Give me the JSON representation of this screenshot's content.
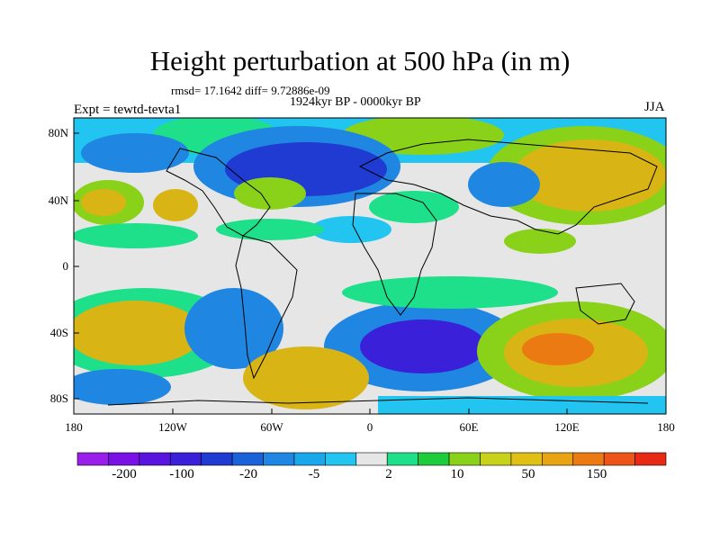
{
  "title": "Height perturbation at 500 hPa (in m)",
  "stats_line": "rmsd= 17.1642  diff= 9.72886e-09",
  "period_line": "1924kyr BP - 0000kyr BP",
  "experiment_label": "Expt = tewtd-tevta1",
  "season_label": "JJA",
  "lat_ticks": [
    "80N",
    "40N",
    "0",
    "40S",
    "80S"
  ],
  "lon_ticks": [
    "180",
    "120W",
    "60W",
    "0",
    "60E",
    "120E",
    "180"
  ],
  "colorbar": {
    "colors": [
      "#9a1eea",
      "#7a10e6",
      "#5a14e0",
      "#3a20d8",
      "#1f3bd2",
      "#1a62da",
      "#1f86e2",
      "#19a8ec",
      "#22c4f0",
      "#e6e6e6",
      "#1ee08a",
      "#1ccc3a",
      "#8ad21a",
      "#c8d21a",
      "#e0c014",
      "#e8a412",
      "#ec7a12",
      "#ee5418",
      "#e82a14"
    ],
    "labels": [
      "-200",
      "-100",
      "-20",
      "-5",
      "2",
      "10",
      "50",
      "150"
    ]
  },
  "map_colors": {
    "neutral": "#e6e6e6",
    "neg_weak": "#22c4f0",
    "neg_mid": "#1f86e2",
    "neg_strong": "#1f3bd2",
    "neg_extreme": "#3a20d8",
    "pos_weak": "#1ee08a",
    "pos_mid": "#8ad21a",
    "pos_strong": "#d8b414",
    "pos_extreme": "#ec7a12"
  }
}
